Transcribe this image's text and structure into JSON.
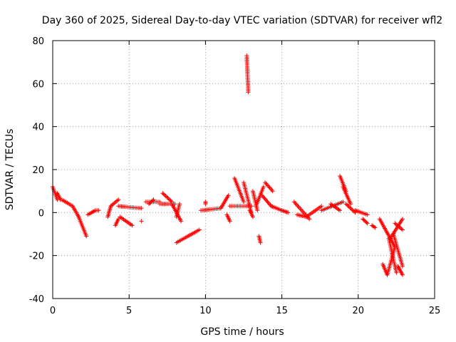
{
  "chart_data": {
    "type": "scatter",
    "title": "Day 360 of 2025, Sidereal Day-to-day VTEC variation (SDTVAR) for receiver wfl2",
    "xlabel": "GPS time / hours",
    "ylabel": "SDTVAR / TECUs",
    "xlim": [
      0,
      25
    ],
    "ylim": [
      -40,
      80
    ],
    "xticks": [
      0,
      5,
      10,
      15,
      20,
      25
    ],
    "yticks": [
      -40,
      -20,
      0,
      20,
      40,
      60,
      80
    ],
    "grid": true,
    "marker": "+",
    "color": "#ff0000",
    "segments": [
      {
        "x0": 0.0,
        "x1": 0.3,
        "y0": 12,
        "y1": 6
      },
      {
        "x0": 0.3,
        "x1": 0.5,
        "y0": 9,
        "y1": 6
      },
      {
        "x0": 0.6,
        "x1": 1.3,
        "y0": 6,
        "y1": 3
      },
      {
        "x0": 1.3,
        "x1": 1.7,
        "y0": 3,
        "y1": -2
      },
      {
        "x0": 1.7,
        "x1": 2.2,
        "y0": -2,
        "y1": -11
      },
      {
        "x0": 2.3,
        "x1": 2.8,
        "y0": -1,
        "y1": 1
      },
      {
        "x0": 2.8,
        "x1": 3.0,
        "y0": 1,
        "y1": 1
      },
      {
        "x0": 3.6,
        "x1": 3.8,
        "y0": -2,
        "y1": 3
      },
      {
        "x0": 3.8,
        "x1": 4.3,
        "y0": 3,
        "y1": 6
      },
      {
        "x0": 4.3,
        "x1": 5.8,
        "y0": 3,
        "y1": 2
      },
      {
        "x0": 4.1,
        "x1": 4.3,
        "y0": -6,
        "y1": -3
      },
      {
        "x0": 4.4,
        "x1": 5.2,
        "y0": -2,
        "y1": -6
      },
      {
        "x0": 5.8,
        "x1": 5.8,
        "y0": -4,
        "y1": -4
      },
      {
        "x0": 6.1,
        "x1": 7.0,
        "y0": 5,
        "y1": 5
      },
      {
        "x0": 6.3,
        "x1": 6.6,
        "y0": 4,
        "y1": 6
      },
      {
        "x0": 7.0,
        "x1": 8.0,
        "y0": 4,
        "y1": 4
      },
      {
        "x0": 7.2,
        "x1": 7.8,
        "y0": 9,
        "y1": 5
      },
      {
        "x0": 7.8,
        "x1": 8.4,
        "y0": 4,
        "y1": -4
      },
      {
        "x0": 8.1,
        "x1": 8.3,
        "y0": -2,
        "y1": 4
      },
      {
        "x0": 8.1,
        "x1": 9.6,
        "y0": -14,
        "y1": -8
      },
      {
        "x0": 9.7,
        "x1": 11.0,
        "y0": 1,
        "y1": 2
      },
      {
        "x0": 10.0,
        "x1": 10.0,
        "y0": 4,
        "y1": 5
      },
      {
        "x0": 11.0,
        "x1": 11.5,
        "y0": 2,
        "y1": 8
      },
      {
        "x0": 11.4,
        "x1": 11.6,
        "y0": -1,
        "y1": -4
      },
      {
        "x0": 11.6,
        "x1": 13.0,
        "y0": 3,
        "y1": 3
      },
      {
        "x0": 11.9,
        "x1": 12.5,
        "y0": 16,
        "y1": 5
      },
      {
        "x0": 12.5,
        "x1": 13.0,
        "y0": 14,
        "y1": 0
      },
      {
        "x0": 12.7,
        "x1": 12.8,
        "y0": 73,
        "y1": 56
      },
      {
        "x0": 12.9,
        "x1": 13.1,
        "y0": 1,
        "y1": -2
      },
      {
        "x0": 13.1,
        "x1": 13.4,
        "y0": 10,
        "y1": 1
      },
      {
        "x0": 13.3,
        "x1": 13.8,
        "y0": 3,
        "y1": 12
      },
      {
        "x0": 13.5,
        "x1": 13.6,
        "y0": -11,
        "y1": -14
      },
      {
        "x0": 13.7,
        "x1": 14.3,
        "y0": 8,
        "y1": 3
      },
      {
        "x0": 13.9,
        "x1": 14.4,
        "y0": 14,
        "y1": 10
      },
      {
        "x0": 14.3,
        "x1": 15.0,
        "y0": 3,
        "y1": 1
      },
      {
        "x0": 15.0,
        "x1": 15.4,
        "y0": 1,
        "y1": 0
      },
      {
        "x0": 15.8,
        "x1": 16.8,
        "y0": 5,
        "y1": -3
      },
      {
        "x0": 16.0,
        "x1": 16.6,
        "y0": -1,
        "y1": -2
      },
      {
        "x0": 16.6,
        "x1": 17.6,
        "y0": -2,
        "y1": 3
      },
      {
        "x0": 17.6,
        "x1": 19.0,
        "y0": 1,
        "y1": 5
      },
      {
        "x0": 18.2,
        "x1": 18.8,
        "y0": 4,
        "y1": 1
      },
      {
        "x0": 18.8,
        "x1": 19.2,
        "y0": 17,
        "y1": 10
      },
      {
        "x0": 19.0,
        "x1": 19.5,
        "y0": 12,
        "y1": 4
      },
      {
        "x0": 19.2,
        "x1": 19.8,
        "y0": 4,
        "y1": 0
      },
      {
        "x0": 19.8,
        "x1": 20.6,
        "y0": 1,
        "y1": -1
      },
      {
        "x0": 20.3,
        "x1": 20.6,
        "y0": -3,
        "y1": -5
      },
      {
        "x0": 20.9,
        "x1": 21.1,
        "y0": -6,
        "y1": -7
      },
      {
        "x0": 21.4,
        "x1": 22.4,
        "y0": -3,
        "y1": -16
      },
      {
        "x0": 21.6,
        "x1": 21.9,
        "y0": -24,
        "y1": -29
      },
      {
        "x0": 21.9,
        "x1": 22.4,
        "y0": -29,
        "y1": -16
      },
      {
        "x0": 22.0,
        "x1": 22.5,
        "y0": -12,
        "y1": -28
      },
      {
        "x0": 22.1,
        "x1": 22.9,
        "y0": -12,
        "y1": -3
      },
      {
        "x0": 22.3,
        "x1": 22.9,
        "y0": -10,
        "y1": -25
      },
      {
        "x0": 22.6,
        "x1": 22.9,
        "y0": -25,
        "y1": -29
      },
      {
        "x0": 22.4,
        "x1": 22.9,
        "y0": -5,
        "y1": -8
      }
    ]
  }
}
